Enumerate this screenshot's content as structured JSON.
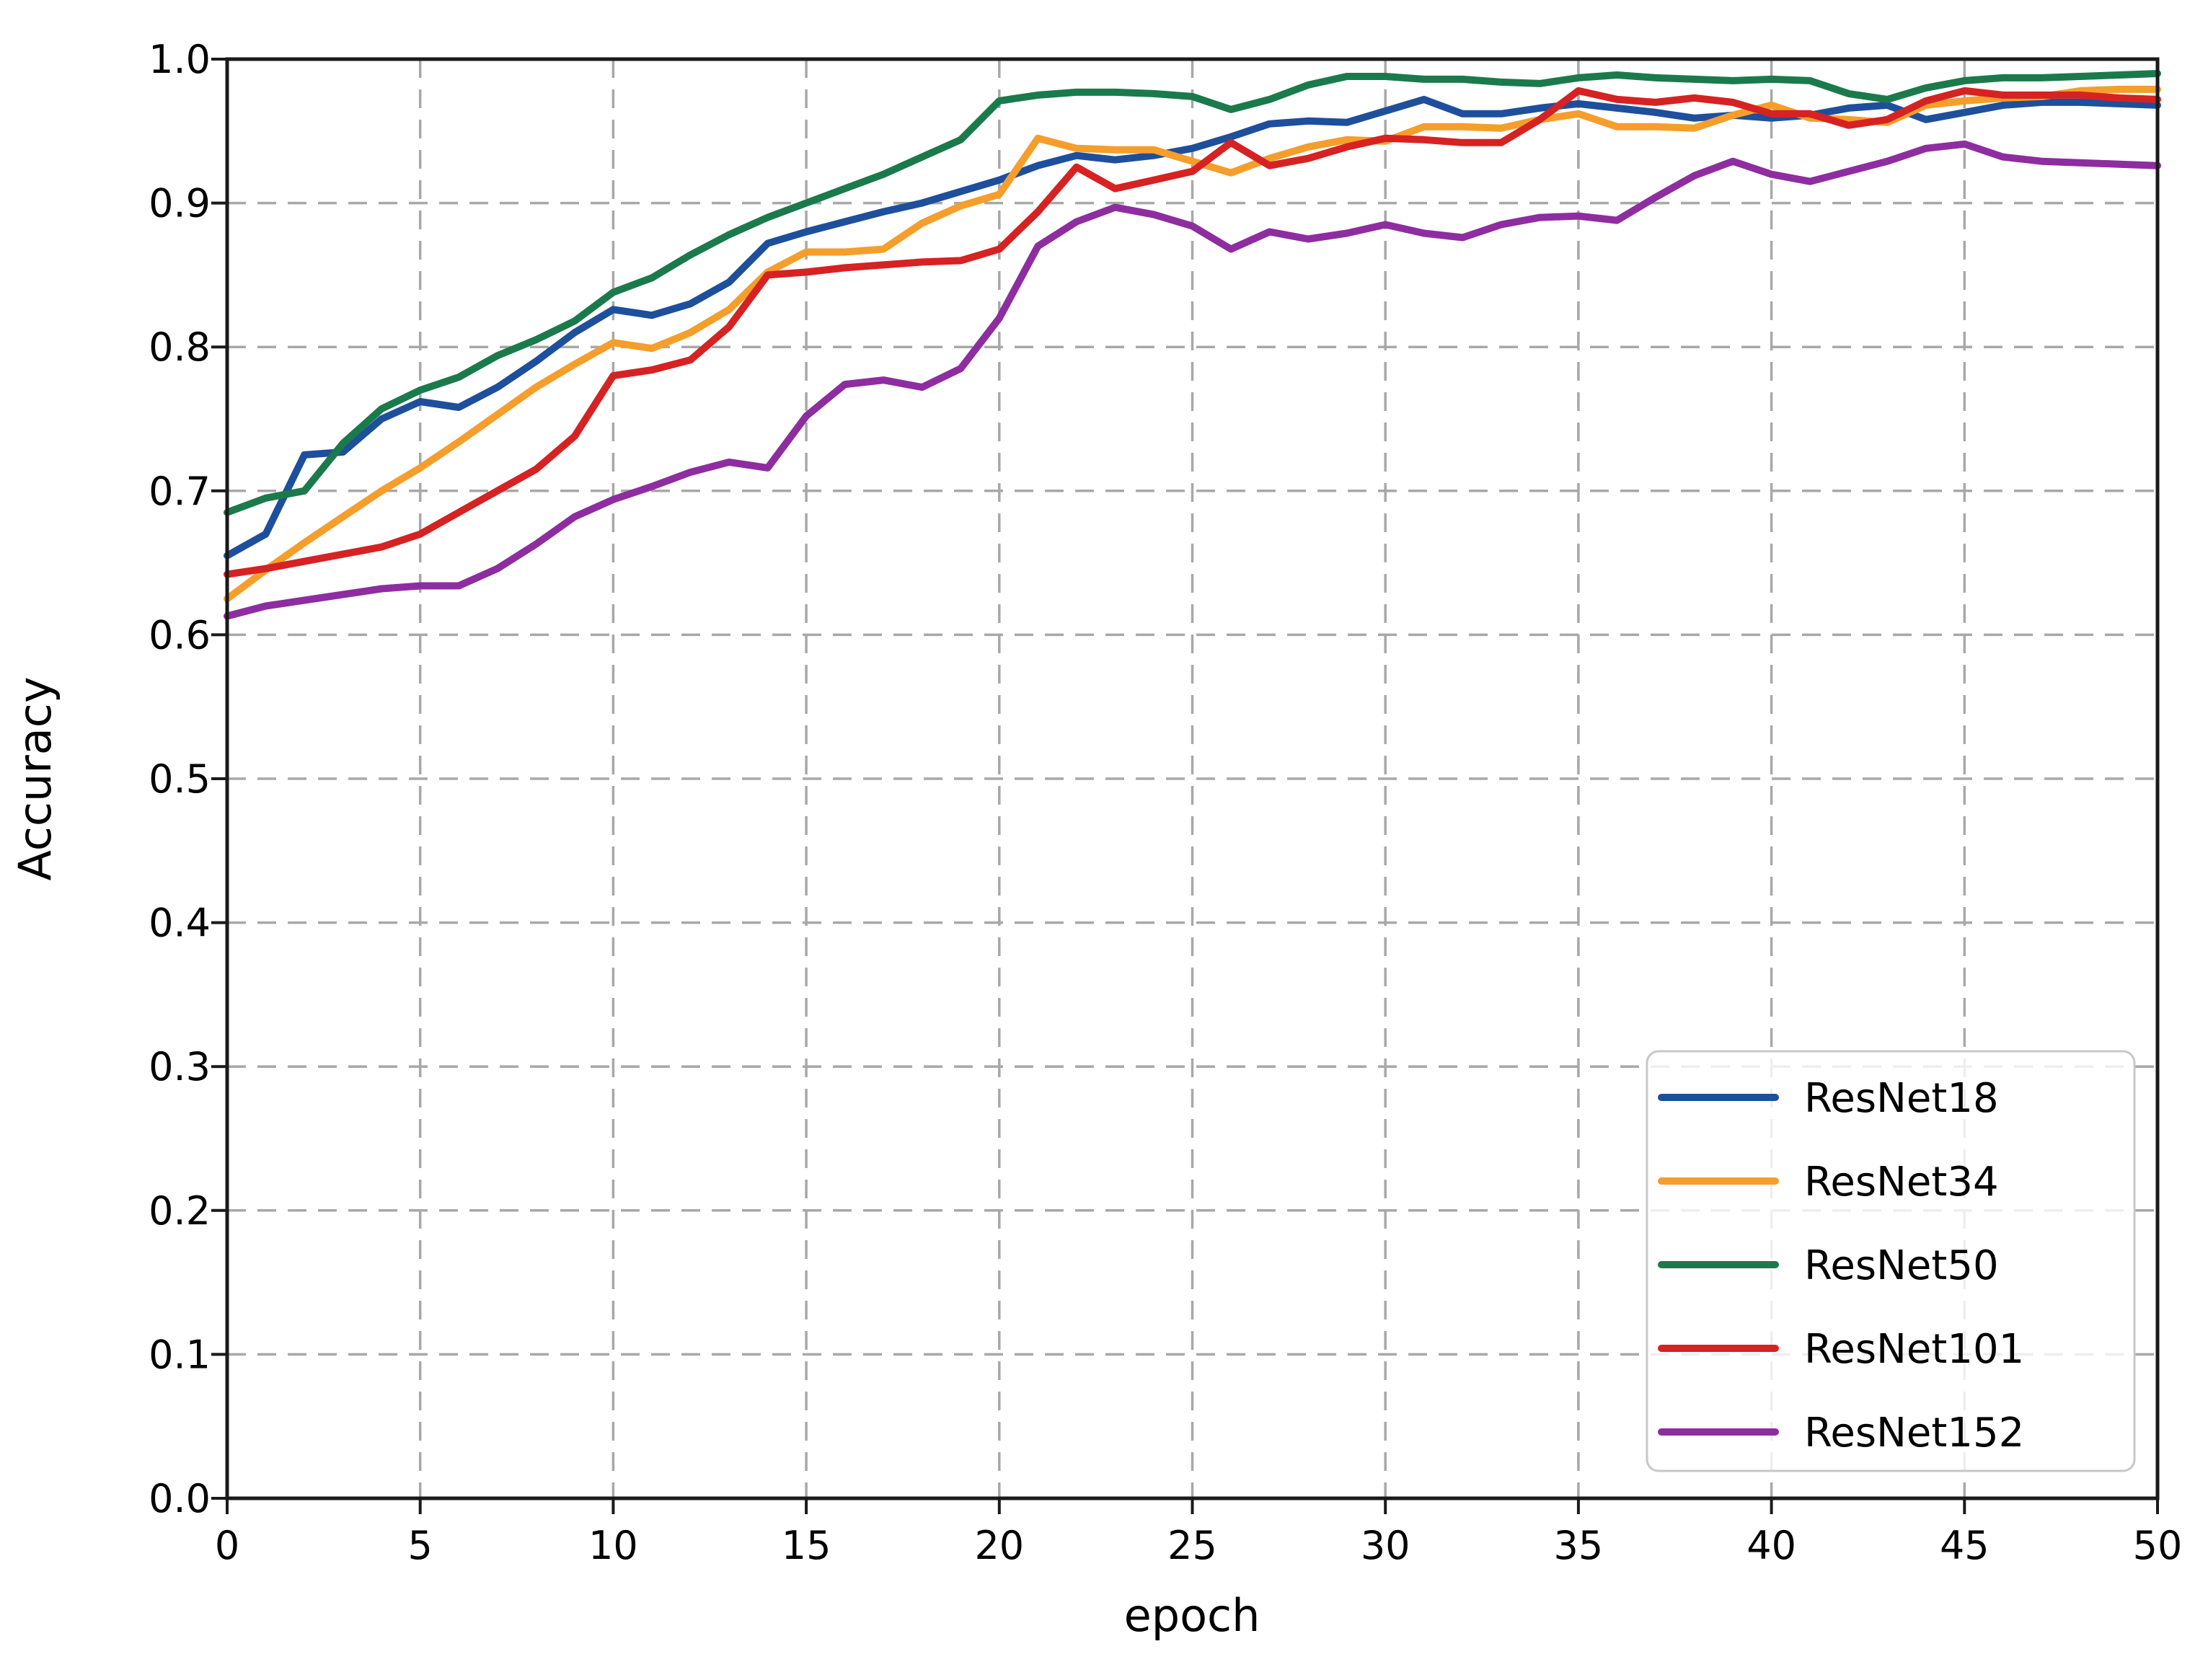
{
  "figure": {
    "background": "#ffffff",
    "spine_color": "#1a1a1a",
    "grid_color": "#a8a8a8",
    "tick_color": "#1a1a1a"
  },
  "chart_data": {
    "type": "line",
    "title": "",
    "xlabel": "epoch",
    "ylabel": "Accuracy",
    "xlim": [
      0,
      50
    ],
    "ylim": [
      0.0,
      1.0
    ],
    "xticks": [
      0,
      5,
      10,
      15,
      20,
      25,
      30,
      35,
      40,
      45,
      50
    ],
    "xticklabels": [
      "0",
      "5",
      "10",
      "15",
      "20",
      "25",
      "30",
      "35",
      "40",
      "45",
      "50"
    ],
    "yticks": [
      0.0,
      0.1,
      0.2,
      0.3,
      0.4,
      0.5,
      0.6,
      0.7,
      0.8,
      0.9,
      1.0
    ],
    "yticklabels": [
      "0.0",
      "0.1",
      "0.2",
      "0.3",
      "0.4",
      "0.5",
      "0.6",
      "0.7",
      "0.8",
      "0.9",
      "1.0"
    ],
    "grid": {
      "visible": true,
      "style": "dashed",
      "color": "#a8a8a8"
    },
    "legend": {
      "position": "lower right",
      "background": "#ffffff",
      "background_opacity": 0.8,
      "border_color": "#c8c8c8"
    },
    "x": [
      0,
      1,
      2,
      3,
      4,
      5,
      6,
      7,
      8,
      9,
      10,
      11,
      12,
      13,
      14,
      15,
      16,
      17,
      18,
      19,
      20,
      21,
      22,
      23,
      24,
      25,
      26,
      27,
      28,
      29,
      30,
      31,
      32,
      33,
      34,
      35,
      36,
      37,
      38,
      39,
      40,
      41,
      42,
      43,
      44,
      45,
      46,
      47,
      48,
      49,
      50
    ],
    "series": [
      {
        "name": "ResNet18",
        "color": "#1e4f9c",
        "values": [
          0.655,
          0.67,
          0.725,
          0.727,
          0.75,
          0.762,
          0.758,
          0.772,
          0.79,
          0.81,
          0.826,
          0.822,
          0.83,
          0.845,
          0.872,
          0.88,
          0.887,
          0.894,
          0.9,
          0.908,
          0.916,
          0.926,
          0.933,
          0.93,
          0.933,
          0.938,
          0.946,
          0.955,
          0.957,
          0.956,
          0.964,
          0.972,
          0.962,
          0.962,
          0.966,
          0.969,
          0.966,
          0.963,
          0.959,
          0.961,
          0.959,
          0.961,
          0.966,
          0.968,
          0.958,
          0.963,
          0.968,
          0.97,
          0.97,
          0.969,
          0.968
        ]
      },
      {
        "name": "ResNet34",
        "color": "#f59e2b",
        "values": [
          0.625,
          0.645,
          0.664,
          0.682,
          0.7,
          0.716,
          0.734,
          0.753,
          0.772,
          0.788,
          0.803,
          0.799,
          0.81,
          0.826,
          0.852,
          0.866,
          0.866,
          0.868,
          0.886,
          0.898,
          0.906,
          0.945,
          0.938,
          0.937,
          0.937,
          0.929,
          0.921,
          0.931,
          0.939,
          0.944,
          0.943,
          0.953,
          0.953,
          0.952,
          0.958,
          0.962,
          0.953,
          0.953,
          0.952,
          0.961,
          0.968,
          0.959,
          0.958,
          0.956,
          0.968,
          0.971,
          0.973,
          0.974,
          0.978,
          0.979,
          0.979
        ]
      },
      {
        "name": "ResNet50",
        "color": "#1b7a4b",
        "values": [
          0.685,
          0.695,
          0.7,
          0.733,
          0.757,
          0.77,
          0.779,
          0.794,
          0.805,
          0.818,
          0.838,
          0.848,
          0.864,
          0.878,
          0.89,
          0.9,
          0.91,
          0.92,
          0.932,
          0.944,
          0.971,
          0.975,
          0.977,
          0.977,
          0.976,
          0.974,
          0.965,
          0.972,
          0.982,
          0.988,
          0.988,
          0.986,
          0.986,
          0.984,
          0.983,
          0.987,
          0.989,
          0.987,
          0.986,
          0.985,
          0.986,
          0.985,
          0.976,
          0.972,
          0.98,
          0.985,
          0.987,
          0.987,
          0.988,
          0.989,
          0.99
        ]
      },
      {
        "name": "ResNet101",
        "color": "#d62222",
        "values": [
          0.642,
          0.646,
          0.651,
          0.656,
          0.661,
          0.67,
          0.685,
          0.7,
          0.715,
          0.738,
          0.78,
          0.784,
          0.791,
          0.814,
          0.85,
          0.852,
          0.855,
          0.857,
          0.859,
          0.86,
          0.868,
          0.894,
          0.925,
          0.91,
          0.916,
          0.922,
          0.942,
          0.926,
          0.931,
          0.939,
          0.945,
          0.944,
          0.942,
          0.942,
          0.958,
          0.978,
          0.972,
          0.97,
          0.973,
          0.97,
          0.962,
          0.962,
          0.954,
          0.958,
          0.971,
          0.978,
          0.975,
          0.975,
          0.975,
          0.973,
          0.972
        ]
      },
      {
        "name": "ResNet152",
        "color": "#8e2da0",
        "values": [
          0.613,
          0.62,
          0.624,
          0.628,
          0.632,
          0.634,
          0.634,
          0.646,
          0.663,
          0.682,
          0.694,
          0.703,
          0.713,
          0.72,
          0.716,
          0.752,
          0.774,
          0.777,
          0.772,
          0.785,
          0.82,
          0.87,
          0.887,
          0.897,
          0.892,
          0.884,
          0.868,
          0.88,
          0.875,
          0.879,
          0.885,
          0.879,
          0.876,
          0.885,
          0.89,
          0.891,
          0.888,
          0.904,
          0.919,
          0.929,
          0.92,
          0.915,
          0.922,
          0.929,
          0.938,
          0.941,
          0.932,
          0.929,
          0.928,
          0.927,
          0.926
        ]
      }
    ]
  }
}
